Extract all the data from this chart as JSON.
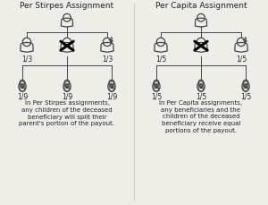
{
  "title_left": "Per Stirpes Assignment",
  "title_right": "Per Capita Assignment",
  "bg_color": "#eeede8",
  "line_color": "#444444",
  "text_color": "#222222",
  "icon_color": "#444444",
  "left_caption": "In Per Stirpes assignments,\nany children of the deceased\nbeneficiary will split their\nparent's portion of the payout.",
  "right_caption": "In Per Capita assignments,\nany beneficiaries and the\nchildren of the deceased\nbeneficiary receive equal\nportions of the payout.",
  "left_fracs_mid": [
    "1/3",
    "1/3"
  ],
  "left_fracs_bot": [
    "1/9",
    "1/9",
    "1/9"
  ],
  "right_fracs_mid": [
    "1/5",
    "1/5"
  ],
  "right_fracs_bot": [
    "1/5",
    "1/5",
    "1/5"
  ]
}
